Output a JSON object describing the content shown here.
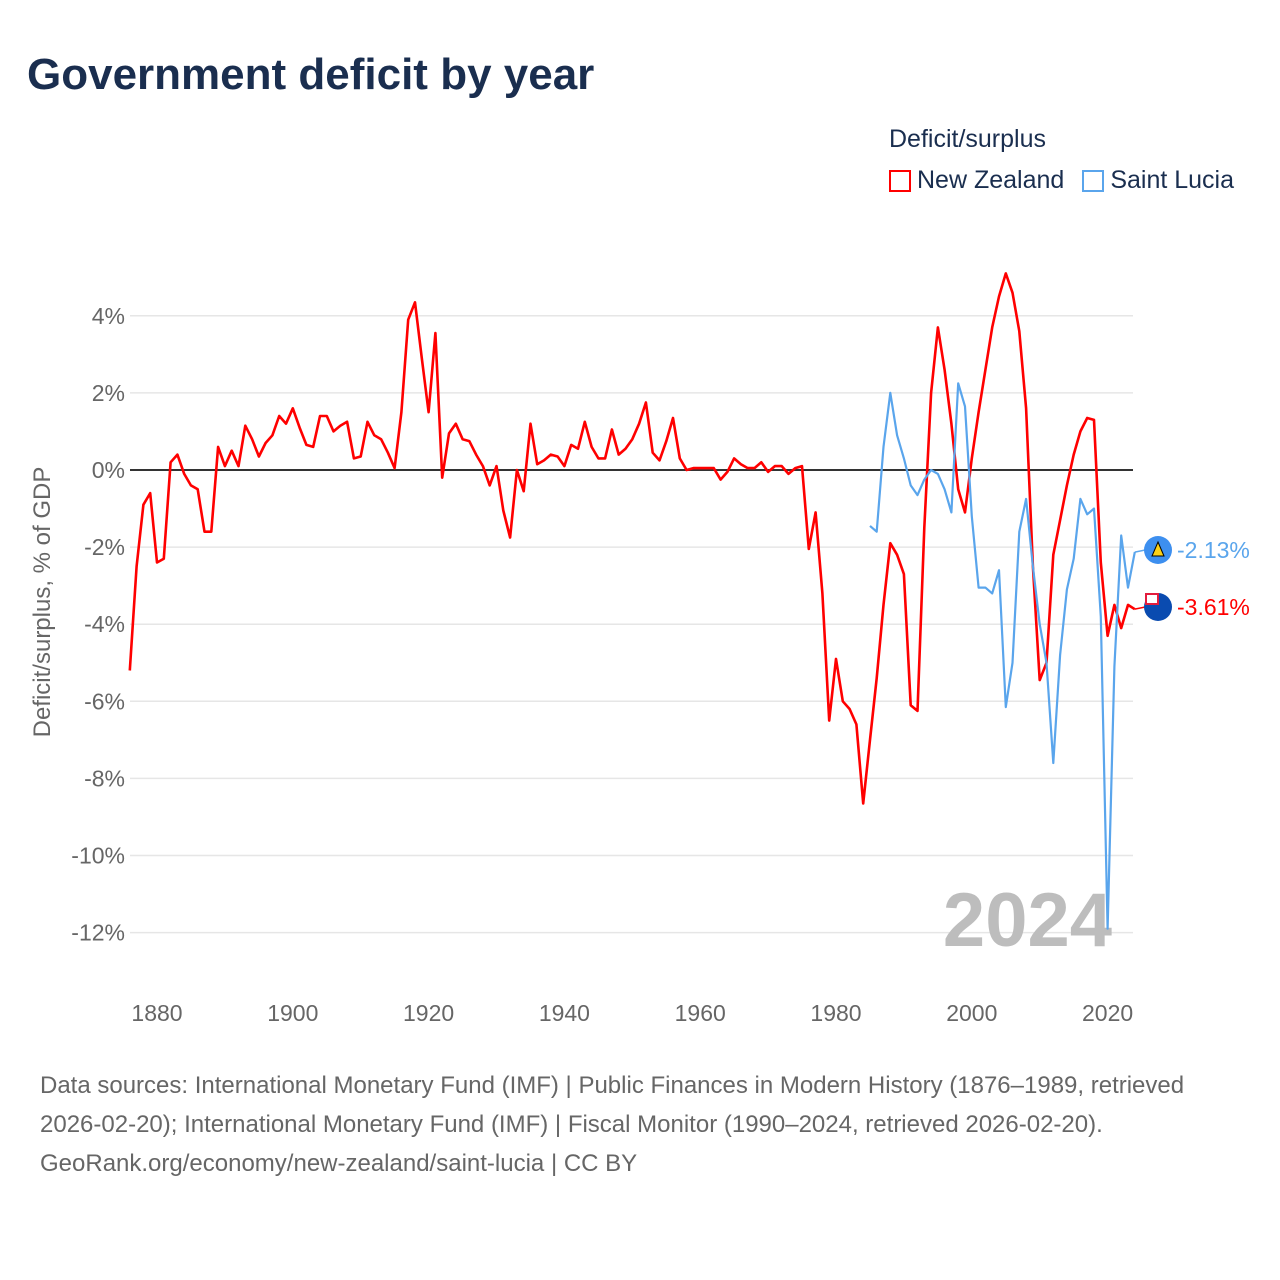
{
  "title": "Government deficit by year",
  "legend": {
    "title": "Deficit/surplus"
  },
  "year_watermark": "2024",
  "footer": {
    "sources": "Data sources: International Monetary Fund (IMF) | Public Finances in Modern History (1876–1989, retrieved 2026-02-20); International Monetary Fund (IMF) | Fiscal Monitor (1990–2024, retrieved 2026-02-20).",
    "credit": "GeoRank.org/economy/new-zealand/saint-lucia | CC BY"
  },
  "chart_data": {
    "type": "line",
    "title": "Government deficit by year",
    "xlabel": "",
    "ylabel": "Deficit/surplus, % of GDP",
    "xlim": [
      1876,
      2024
    ],
    "ylim": [
      -12,
      4
    ],
    "xticks": [
      1880,
      1900,
      1920,
      1940,
      1960,
      1980,
      2000,
      2020
    ],
    "yticks": [
      4,
      2,
      0,
      -2,
      -4,
      -6,
      -8,
      -10,
      -12
    ],
    "ytick_labels": [
      "4%",
      "2%",
      "0%",
      "-2%",
      "-4%",
      "-6%",
      "-8%",
      "-10%",
      "-12%"
    ],
    "grid": true,
    "legend_position": "top-right",
    "series": [
      {
        "name": "New Zealand",
        "color": "#ff0000",
        "end_label": "-3.61%",
        "start_year": 1876,
        "values": [
          -5.2,
          -2.5,
          -0.9,
          -0.6,
          -2.4,
          -2.3,
          0.2,
          0.4,
          -0.1,
          -0.4,
          -0.5,
          -1.6,
          -1.6,
          0.6,
          0.1,
          0.5,
          0.1,
          1.15,
          0.8,
          0.35,
          0.7,
          0.9,
          1.4,
          1.2,
          1.6,
          1.1,
          0.65,
          0.6,
          1.4,
          1.4,
          1.0,
          1.15,
          1.25,
          0.3,
          0.35,
          1.25,
          0.9,
          0.8,
          0.45,
          0.05,
          1.5,
          3.9,
          4.35,
          2.9,
          1.5,
          3.55,
          -0.2,
          0.95,
          1.2,
          0.8,
          0.75,
          0.4,
          0.1,
          -0.4,
          0.1,
          -1.05,
          -1.75,
          0.0,
          -0.55,
          1.2,
          0.15,
          0.25,
          0.4,
          0.35,
          0.1,
          0.65,
          0.55,
          1.25,
          0.6,
          0.3,
          0.3,
          1.05,
          0.4,
          0.55,
          0.8,
          1.2,
          1.75,
          0.45,
          0.25,
          0.75,
          1.35,
          0.3,
          0.0,
          0.05,
          0.05,
          0.05,
          0.05,
          -0.25,
          -0.05,
          0.3,
          0.15,
          0.05,
          0.05,
          0.2,
          -0.05,
          0.1,
          0.1,
          -0.1,
          0.05,
          0.1,
          -2.05,
          -1.1,
          -3.2,
          -6.5,
          -4.9,
          -6.0,
          -6.2,
          -6.6,
          -8.65,
          -7.0,
          -5.4,
          -3.5,
          -1.9,
          -2.2,
          -2.7,
          -6.1,
          -6.25,
          -1.5,
          2.0,
          3.7,
          2.6,
          1.2,
          -0.5,
          -1.1,
          0.3,
          1.5,
          2.6,
          3.7,
          4.5,
          5.1,
          4.6,
          3.6,
          1.6,
          -2.5,
          -5.45,
          -5.0,
          -2.2,
          -1.3,
          -0.4,
          0.4,
          1.0,
          1.35,
          1.3,
          -2.4,
          -4.3,
          -3.5,
          -4.1,
          -3.5,
          -3.61
        ]
      },
      {
        "name": "Saint Lucia",
        "color": "#5aa5ec",
        "end_label": "-2.13%",
        "start_year": 1985,
        "values": [
          -1.45,
          -1.6,
          0.6,
          2.0,
          0.9,
          0.3,
          -0.4,
          -0.65,
          -0.25,
          0.0,
          -0.1,
          -0.5,
          -1.1,
          2.25,
          1.65,
          -1.2,
          -3.05,
          -3.05,
          -3.2,
          -2.6,
          -6.15,
          -5.0,
          -1.6,
          -0.75,
          -2.5,
          -4.0,
          -5.0,
          -7.6,
          -4.8,
          -3.1,
          -2.3,
          -0.75,
          -1.15,
          -1.0,
          -3.8,
          -11.9,
          -5.1,
          -1.7,
          -3.05,
          -2.13
        ]
      }
    ]
  }
}
